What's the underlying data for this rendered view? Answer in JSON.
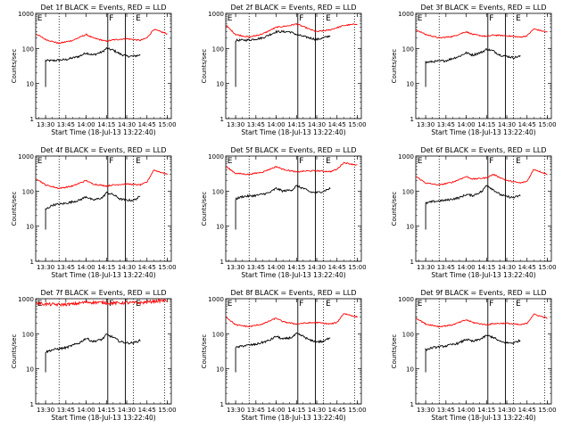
{
  "shared": {
    "ylabel": "Counts/sec",
    "xlabel": "Start Time (18-Jul-13 13:22:40)",
    "xticks": [
      "13:30",
      "13:45",
      "14:00",
      "14:15",
      "14:30",
      "14:45",
      "15:00"
    ],
    "yticks": [
      "1",
      "10",
      "100",
      "1000"
    ],
    "colors": {
      "events": "#000000",
      "lld": "#ff0000"
    }
  },
  "chart_data": [
    {
      "type": "line",
      "title": "Det 1f BLACK = Events, RED = LLD",
      "xlabel": "Start Time (18-Jul-13 13:22:40)",
      "ylabel": "Counts/sec",
      "yscale": "log",
      "ylim": [
        1,
        1000
      ],
      "x_range": [
        "13:22:40",
        "15:03"
      ],
      "markers": [
        "E",
        "F",
        "E"
      ],
      "series": [
        {
          "name": "Events",
          "color": "#000000",
          "x": [
            "13:30",
            "13:35",
            "13:45",
            "13:55",
            "14:00",
            "14:05",
            "14:12",
            "14:15",
            "14:20",
            "14:25",
            "14:30",
            "14:35",
            "14:40"
          ],
          "values": [
            45,
            45,
            48,
            60,
            75,
            65,
            80,
            100,
            90,
            70,
            60,
            60,
            65
          ]
        },
        {
          "name": "LLD",
          "color": "#ff0000",
          "x": [
            "13:23",
            "13:30",
            "13:40",
            "13:50",
            "14:00",
            "14:05",
            "14:15",
            "14:20",
            "14:30",
            "14:40",
            "14:45",
            "14:50",
            "15:00"
          ],
          "values": [
            260,
            180,
            140,
            170,
            250,
            200,
            160,
            175,
            190,
            170,
            200,
            350,
            260
          ]
        }
      ]
    },
    {
      "type": "line",
      "title": "Det 2f BLACK = Events, RED = LLD",
      "xlabel": "Start Time (18-Jul-13 13:22:40)",
      "ylabel": "Counts/sec",
      "yscale": "log",
      "ylim": [
        1,
        1000
      ],
      "x_range": [
        "13:22:40",
        "15:03"
      ],
      "markers": [
        "E",
        "F",
        "E"
      ],
      "series": [
        {
          "name": "Events",
          "color": "#000000",
          "x": [
            "13:30",
            "13:40",
            "13:50",
            "14:00",
            "14:10",
            "14:15",
            "14:20",
            "14:25",
            "14:30",
            "14:35",
            "14:40"
          ],
          "values": [
            170,
            175,
            200,
            300,
            300,
            250,
            220,
            200,
            180,
            200,
            230
          ]
        },
        {
          "name": "LLD",
          "color": "#ff0000",
          "x": [
            "13:23",
            "13:30",
            "13:40",
            "13:50",
            "14:00",
            "14:10",
            "14:15",
            "14:20",
            "14:25",
            "14:30",
            "14:40",
            "14:50",
            "15:00"
          ],
          "values": [
            450,
            250,
            210,
            260,
            400,
            450,
            500,
            420,
            350,
            300,
            340,
            450,
            500
          ]
        }
      ]
    },
    {
      "type": "line",
      "title": "Det 3f BLACK = Events, RED = LLD",
      "xlabel": "Start Time (18-Jul-13 13:22:40)",
      "ylabel": "Counts/sec",
      "yscale": "log",
      "ylim": [
        1,
        1000
      ],
      "x_range": [
        "13:22:40",
        "15:03"
      ],
      "markers": [
        "E",
        "F",
        "E"
      ],
      "series": [
        {
          "name": "Events",
          "color": "#000000",
          "x": [
            "13:30",
            "13:35",
            "13:45",
            "13:55",
            "14:00",
            "14:05",
            "14:12",
            "14:15",
            "14:20",
            "14:25",
            "14:30",
            "14:35",
            "14:40"
          ],
          "values": [
            40,
            42,
            45,
            60,
            75,
            65,
            80,
            95,
            85,
            65,
            60,
            55,
            60
          ]
        },
        {
          "name": "LLD",
          "color": "#ff0000",
          "x": [
            "13:23",
            "13:30",
            "13:40",
            "13:50",
            "14:00",
            "14:05",
            "14:15",
            "14:20",
            "14:30",
            "14:40",
            "14:45",
            "14:50",
            "15:00"
          ],
          "values": [
            340,
            250,
            200,
            220,
            300,
            250,
            220,
            240,
            230,
            210,
            230,
            360,
            290
          ]
        }
      ]
    },
    {
      "type": "line",
      "title": "Det 4f BLACK = Events, RED = LLD",
      "xlabel": "Start Time (18-Jul-13 13:22:40)",
      "ylabel": "Counts/sec",
      "yscale": "log",
      "ylim": [
        1,
        1000
      ],
      "x_range": [
        "13:22:40",
        "15:03"
      ],
      "markers": [
        "E",
        "F",
        "E"
      ],
      "series": [
        {
          "name": "Events",
          "color": "#000000",
          "x": [
            "13:30",
            "13:35",
            "13:45",
            "13:55",
            "14:00",
            "14:05",
            "14:12",
            "14:15",
            "14:20",
            "14:25",
            "14:30",
            "14:35",
            "14:40"
          ],
          "values": [
            30,
            40,
            45,
            55,
            70,
            55,
            65,
            90,
            80,
            60,
            55,
            55,
            70
          ]
        },
        {
          "name": "LLD",
          "color": "#ff0000",
          "x": [
            "13:23",
            "13:30",
            "13:40",
            "13:50",
            "14:00",
            "14:05",
            "14:15",
            "14:20",
            "14:30",
            "14:40",
            "14:45",
            "14:50",
            "15:00"
          ],
          "values": [
            230,
            150,
            120,
            140,
            200,
            160,
            140,
            150,
            160,
            150,
            180,
            400,
            300
          ]
        }
      ]
    },
    {
      "type": "line",
      "title": "Det 5f BLACK = Events, RED = LLD",
      "xlabel": "Start Time (18-Jul-13 13:22:40)",
      "ylabel": "Counts/sec",
      "yscale": "log",
      "ylim": [
        1,
        1000
      ],
      "x_range": [
        "13:22:40",
        "15:03"
      ],
      "markers": [
        "E",
        "F",
        "E"
      ],
      "series": [
        {
          "name": "Events",
          "color": "#000000",
          "x": [
            "13:30",
            "13:35",
            "13:45",
            "13:55",
            "14:00",
            "14:05",
            "14:12",
            "14:15",
            "14:20",
            "14:25",
            "14:30",
            "14:35",
            "14:40"
          ],
          "values": [
            60,
            70,
            75,
            90,
            120,
            100,
            110,
            140,
            120,
            95,
            90,
            100,
            120
          ]
        },
        {
          "name": "LLD",
          "color": "#ff0000",
          "x": [
            "13:23",
            "13:30",
            "13:40",
            "13:50",
            "14:00",
            "14:05",
            "14:15",
            "14:20",
            "14:30",
            "14:40",
            "14:45",
            "14:50",
            "15:00"
          ],
          "values": [
            500,
            320,
            300,
            350,
            500,
            420,
            350,
            370,
            380,
            360,
            420,
            650,
            550
          ]
        }
      ]
    },
    {
      "type": "line",
      "title": "Det 6f BLACK = Events, RED = LLD",
      "xlabel": "Start Time (18-Jul-13 13:22:40)",
      "ylabel": "Counts/sec",
      "yscale": "log",
      "ylim": [
        1,
        1000
      ],
      "x_range": [
        "13:22:40",
        "15:03"
      ],
      "markers": [
        "E",
        "F",
        "E"
      ],
      "series": [
        {
          "name": "Events",
          "color": "#000000",
          "x": [
            "13:30",
            "13:35",
            "13:45",
            "13:55",
            "14:00",
            "14:05",
            "14:12",
            "14:15",
            "14:20",
            "14:25",
            "14:30",
            "14:35",
            "14:40"
          ],
          "values": [
            45,
            50,
            55,
            65,
            80,
            75,
            100,
            150,
            110,
            80,
            70,
            65,
            75
          ]
        },
        {
          "name": "LLD",
          "color": "#ff0000",
          "x": [
            "13:23",
            "13:30",
            "13:40",
            "13:50",
            "14:00",
            "14:05",
            "14:15",
            "14:20",
            "14:30",
            "14:40",
            "14:45",
            "14:50",
            "15:00"
          ],
          "values": [
            260,
            170,
            150,
            180,
            260,
            220,
            240,
            300,
            200,
            170,
            190,
            420,
            300
          ]
        }
      ]
    },
    {
      "type": "line",
      "title": "Det 7f BLACK = Events, RED = LLD",
      "xlabel": "Start Time (18-Jul-13 13:22:40)",
      "ylabel": "Counts/sec",
      "yscale": "log",
      "ylim": [
        1,
        1000
      ],
      "x_range": [
        "13:22:40",
        "15:03"
      ],
      "markers": [
        "E",
        "F",
        "E"
      ],
      "series": [
        {
          "name": "Events",
          "color": "#000000",
          "x": [
            "13:30",
            "13:35",
            "13:45",
            "13:55",
            "14:00",
            "14:05",
            "14:12",
            "14:15",
            "14:20",
            "14:25",
            "14:30",
            "14:35",
            "14:40"
          ],
          "values": [
            30,
            35,
            40,
            55,
            75,
            60,
            70,
            95,
            80,
            60,
            55,
            55,
            65
          ]
        },
        {
          "name": "LLD",
          "color": "#ff0000",
          "x": [
            "13:23",
            "13:30",
            "13:40",
            "13:50",
            "14:00",
            "14:10",
            "14:20",
            "14:30",
            "14:40",
            "14:50",
            "15:00"
          ],
          "values": [
            750,
            700,
            680,
            700,
            800,
            780,
            750,
            770,
            760,
            850,
            900
          ]
        }
      ]
    },
    {
      "type": "line",
      "title": "Det 8f BLACK = Events, RED = LLD",
      "xlabel": "Start Time (18-Jul-13 13:22:40)",
      "ylabel": "Counts/sec",
      "yscale": "log",
      "ylim": [
        1,
        1000
      ],
      "x_range": [
        "13:22:40",
        "15:03"
      ],
      "markers": [
        "E",
        "F",
        "E"
      ],
      "series": [
        {
          "name": "Events",
          "color": "#000000",
          "x": [
            "13:30",
            "13:35",
            "13:45",
            "13:55",
            "14:00",
            "14:05",
            "14:12",
            "14:15",
            "14:20",
            "14:25",
            "14:30",
            "14:35",
            "14:40"
          ],
          "values": [
            40,
            45,
            50,
            65,
            85,
            70,
            80,
            100,
            85,
            65,
            60,
            60,
            80
          ]
        },
        {
          "name": "LLD",
          "color": "#ff0000",
          "x": [
            "13:23",
            "13:30",
            "13:40",
            "13:50",
            "14:00",
            "14:05",
            "14:15",
            "14:20",
            "14:30",
            "14:40",
            "14:45",
            "14:50",
            "15:00"
          ],
          "values": [
            300,
            180,
            160,
            190,
            280,
            220,
            190,
            200,
            210,
            190,
            210,
            380,
            300
          ]
        }
      ]
    },
    {
      "type": "line",
      "title": "Det 9f BLACK = Events, RED = LLD",
      "xlabel": "Start Time (18-Jul-13 13:22:40)",
      "ylabel": "Counts/sec",
      "yscale": "log",
      "ylim": [
        1,
        1000
      ],
      "x_range": [
        "13:22:40",
        "15:03"
      ],
      "markers": [
        "E",
        "F",
        "E"
      ],
      "series": [
        {
          "name": "Events",
          "color": "#000000",
          "x": [
            "13:30",
            "13:35",
            "13:45",
            "13:55",
            "14:00",
            "14:05",
            "14:12",
            "14:15",
            "14:20",
            "14:25",
            "14:30",
            "14:35",
            "14:40"
          ],
          "values": [
            35,
            40,
            45,
            55,
            70,
            60,
            75,
            90,
            80,
            60,
            55,
            55,
            65
          ]
        },
        {
          "name": "LLD",
          "color": "#ff0000",
          "x": [
            "13:23",
            "13:30",
            "13:40",
            "13:50",
            "14:00",
            "14:05",
            "14:15",
            "14:20",
            "14:30",
            "14:40",
            "14:45",
            "14:50",
            "15:00"
          ],
          "values": [
            280,
            190,
            160,
            180,
            250,
            210,
            180,
            195,
            200,
            180,
            200,
            360,
            280
          ]
        }
      ]
    }
  ]
}
